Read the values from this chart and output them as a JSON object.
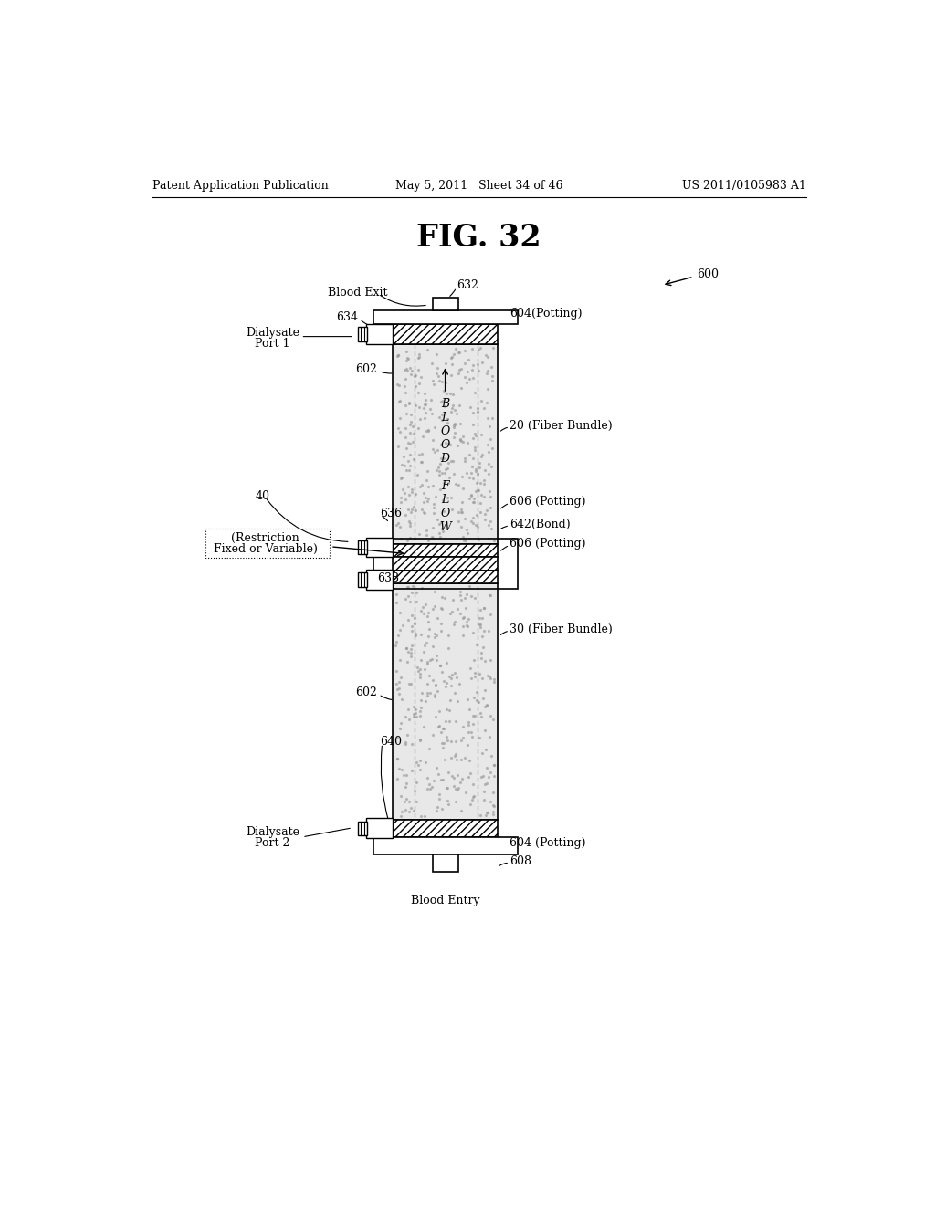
{
  "title": "FIG. 32",
  "header_left": "Patent Application Publication",
  "header_mid": "May 5, 2011   Sheet 34 of 46",
  "header_right": "US 2011/0105983 A1",
  "bg_color": "#ffffff"
}
